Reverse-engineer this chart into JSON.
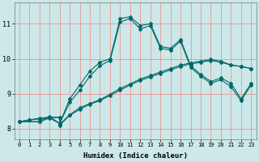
{
  "xlabel": "Humidex (Indice chaleur)",
  "ylabel": "",
  "bg_color": "#cce8e8",
  "grid_color": "#e8a0a0",
  "line_color": "#006868",
  "xlim": [
    -0.5,
    23.5
  ],
  "ylim": [
    7.7,
    11.6
  ],
  "xticks": [
    0,
    1,
    2,
    3,
    4,
    5,
    6,
    7,
    8,
    9,
    10,
    11,
    12,
    13,
    14,
    15,
    16,
    17,
    18,
    19,
    20,
    21,
    22,
    23
  ],
  "yticks": [
    8,
    9,
    10,
    11
  ],
  "line_peaked1_x": [
    0,
    2,
    3,
    4,
    5,
    6,
    7,
    8,
    9,
    10,
    11,
    12,
    13,
    14,
    15,
    16,
    17,
    18,
    19,
    20,
    21,
    22,
    23
  ],
  "line_peaked1_y": [
    8.2,
    8.2,
    8.35,
    8.15,
    8.85,
    9.25,
    9.65,
    9.9,
    10.0,
    11.15,
    11.2,
    10.95,
    11.0,
    10.35,
    10.3,
    10.55,
    9.8,
    9.55,
    9.35,
    9.45,
    9.3,
    8.85,
    9.3
  ],
  "line_peaked2_x": [
    0,
    2,
    3,
    4,
    5,
    6,
    7,
    8,
    9,
    10,
    11,
    12,
    13,
    14,
    15,
    16,
    17,
    18,
    19,
    20,
    21,
    22,
    23
  ],
  "line_peaked2_y": [
    8.2,
    8.2,
    8.3,
    8.15,
    8.75,
    9.1,
    9.5,
    9.8,
    9.95,
    11.05,
    11.15,
    10.85,
    10.95,
    10.3,
    10.25,
    10.5,
    9.75,
    9.5,
    9.3,
    9.4,
    9.2,
    8.8,
    9.25
  ],
  "line_flat1_x": [
    0,
    1,
    2,
    3,
    4,
    4,
    5,
    6,
    7,
    8,
    9,
    10,
    11,
    12,
    13,
    14,
    15,
    16,
    17,
    18,
    19,
    20,
    21,
    22,
    23
  ],
  "line_flat1_y": [
    8.2,
    8.25,
    8.28,
    8.32,
    8.32,
    8.1,
    8.38,
    8.55,
    8.7,
    8.8,
    8.95,
    9.1,
    9.25,
    9.38,
    9.48,
    9.58,
    9.68,
    9.78,
    9.85,
    9.9,
    9.95,
    9.9,
    9.82,
    9.78,
    9.72
  ],
  "line_flat2_x": [
    0,
    1,
    2,
    3,
    4,
    4,
    5,
    6,
    7,
    8,
    9,
    10,
    11,
    12,
    13,
    14,
    15,
    16,
    17,
    18,
    19,
    20,
    21,
    22,
    23
  ],
  "line_flat2_y": [
    8.2,
    8.25,
    8.3,
    8.33,
    8.33,
    8.12,
    8.4,
    8.6,
    8.72,
    8.83,
    8.98,
    9.15,
    9.28,
    9.42,
    9.52,
    9.62,
    9.72,
    9.82,
    9.88,
    9.93,
    9.98,
    9.93,
    9.82,
    9.78,
    9.72
  ]
}
